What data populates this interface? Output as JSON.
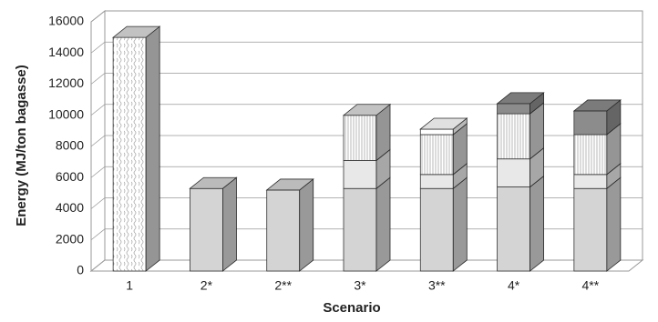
{
  "chart_data": {
    "type": "bar3d_stacked",
    "x_label": "Scenario",
    "y_label": "Energy (MJ/ton bagasse)",
    "categories": [
      "1",
      "2*",
      "2**",
      "3*",
      "3**",
      "4*",
      "4**"
    ],
    "series": [
      {
        "color": "#ffffff",
        "pattern": "wave",
        "values": [
          15000,
          null,
          null,
          null,
          null,
          null,
          null
        ]
      },
      {
        "color": "#d4d4d4",
        "values": [
          null,
          5300,
          5200,
          5300,
          5300,
          5400,
          5300
        ]
      },
      {
        "color": "#e8e8e8",
        "values": [
          null,
          null,
          null,
          1800,
          900,
          1800,
          900
        ]
      },
      {
        "color": "#ffffff",
        "pattern": "stripes",
        "values": [
          null,
          null,
          null,
          2900,
          2560,
          2900,
          2560
        ]
      },
      {
        "color": "#ffffff",
        "values": [
          null,
          null,
          null,
          null,
          350,
          null,
          null
        ]
      },
      {
        "color": "#8c8c8c",
        "values": [
          null,
          null,
          null,
          null,
          null,
          650,
          1520
        ]
      }
    ],
    "ylim": [
      0,
      16000
    ],
    "yticks": [
      0,
      2000,
      4000,
      6000,
      8000,
      10000,
      12000,
      14000,
      16000
    ],
    "grid": true
  }
}
